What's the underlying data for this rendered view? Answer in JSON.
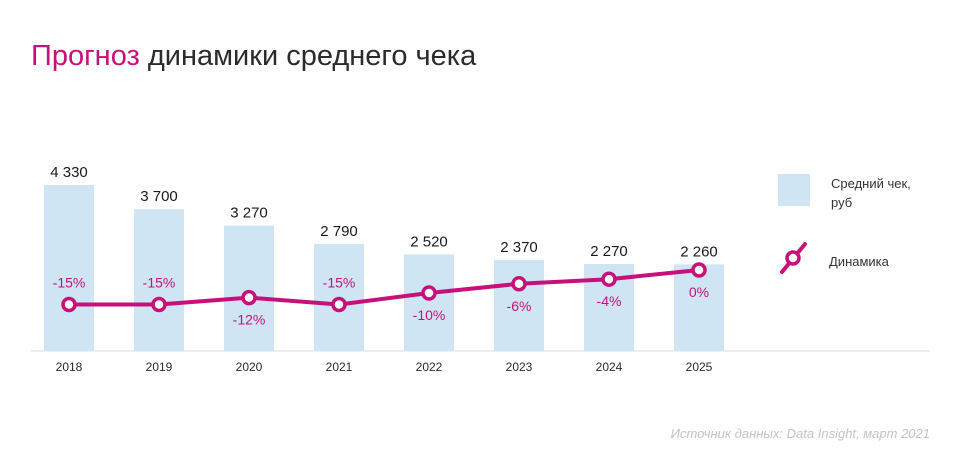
{
  "title": {
    "accent": "Прогноз",
    "rest": "динамики среднего чека"
  },
  "legend": {
    "bars_label_line1": "Средний чек,",
    "bars_label_line2": "руб",
    "line_label": "Динамика"
  },
  "source": "Источник данных: Data Insight, март 2021",
  "colors": {
    "bar": "#cfe5f3",
    "line": "#c8107a",
    "title_accent": "#c8107a",
    "text": "#2b2b2b"
  },
  "chart_data": {
    "type": "bar",
    "categories": [
      "2018",
      "2019",
      "2020",
      "2021",
      "2022",
      "2023",
      "2024",
      "2025"
    ],
    "series": [
      {
        "name": "Средний чек, руб",
        "type": "bar",
        "values": [
          4330,
          3700,
          3270,
          2790,
          2520,
          2370,
          2270,
          2260
        ],
        "labels": [
          "4 330",
          "3 700",
          "3 270",
          "2 790",
          "2 520",
          "2 370",
          "2 270",
          "2 260"
        ]
      },
      {
        "name": "Динамика",
        "type": "line",
        "values": [
          -15,
          -15,
          -12,
          -15,
          -10,
          -6,
          -4,
          0
        ],
        "labels": [
          "-15%",
          "-15%",
          "-12%",
          "-15%",
          "-10%",
          "-6%",
          "-4%",
          "0%"
        ]
      }
    ],
    "legend": "right"
  }
}
